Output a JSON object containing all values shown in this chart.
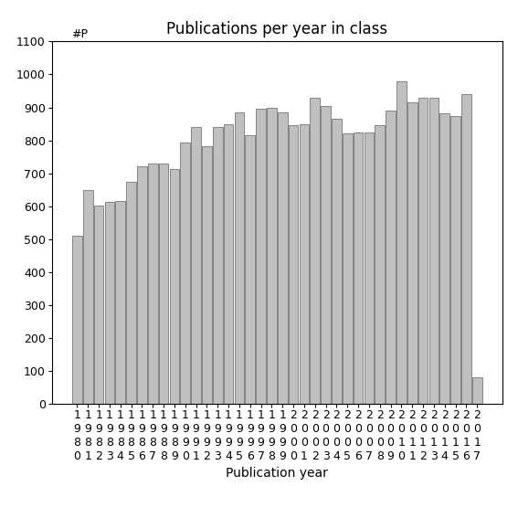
{
  "title": "Publications per year in class",
  "xlabel": "Publication year",
  "ylabel": "#P",
  "years": [
    "1980",
    "1981",
    "1982",
    "1983",
    "1984",
    "1985",
    "1986",
    "1987",
    "1988",
    "1989",
    "1990",
    "1991",
    "1992",
    "1993",
    "1994",
    "1995",
    "1996",
    "1997",
    "1998",
    "1999",
    "2000",
    "2001",
    "2002",
    "2003",
    "2004",
    "2005",
    "2006",
    "2007",
    "2008",
    "2009",
    "2010",
    "2011",
    "2012",
    "2013",
    "2014",
    "2015",
    "2016",
    "2017"
  ],
  "values": [
    510,
    648,
    601,
    612,
    615,
    675,
    720,
    730,
    730,
    712,
    793,
    840,
    782,
    840,
    848,
    885,
    816,
    895,
    900,
    885,
    845,
    850,
    929,
    905,
    865,
    820,
    823,
    825,
    845,
    890,
    980,
    915,
    928,
    930,
    882,
    875,
    940,
    80
  ],
  "bar_color": "#c0c0c0",
  "bar_edge_color": "#606060",
  "ylim": [
    0,
    1100
  ],
  "yticks": [
    0,
    100,
    200,
    300,
    400,
    500,
    600,
    700,
    800,
    900,
    1000,
    1100
  ],
  "bg_color": "#ffffff",
  "title_fontsize": 12,
  "label_fontsize": 10,
  "tick_fontsize": 9
}
